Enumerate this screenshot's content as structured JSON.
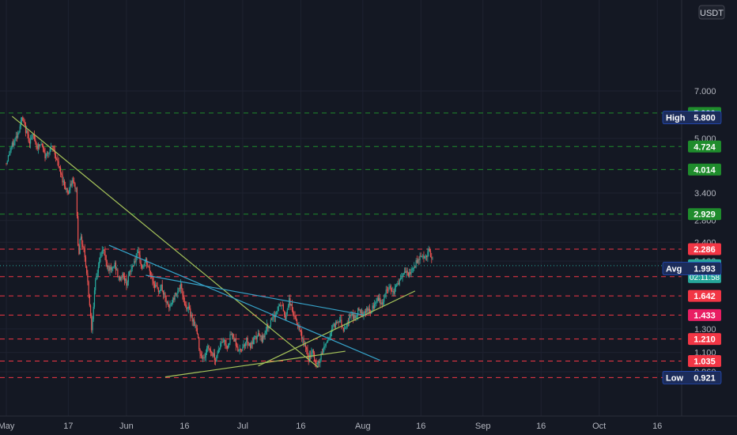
{
  "chart_data": {
    "type": "candlestick",
    "price_scale": {
      "currency": "USDT",
      "type": "log",
      "ticks": [
        "7.000",
        "5.000",
        "3.400",
        "2.800",
        "2.400",
        "2.100",
        "1.300",
        "1.100",
        "0.960"
      ]
    },
    "time_axis": {
      "ticks": [
        {
          "label": "May",
          "day": 0
        },
        {
          "label": "17",
          "day": 16
        },
        {
          "label": "Jun",
          "day": 31
        },
        {
          "label": "16",
          "day": 46
        },
        {
          "label": "Jul",
          "day": 61
        },
        {
          "label": "16",
          "day": 76
        },
        {
          "label": "Aug",
          "day": 92
        },
        {
          "label": "16",
          "day": 107
        },
        {
          "label": "Sep",
          "day": 123
        },
        {
          "label": "16",
          "day": 138
        },
        {
          "label": "Oct",
          "day": 153
        },
        {
          "label": "16",
          "day": 168
        }
      ]
    },
    "price_path": [
      [
        0,
        4.2
      ],
      [
        1,
        4.6
      ],
      [
        2,
        4.9
      ],
      [
        3,
        5.2
      ],
      [
        4,
        5.75
      ],
      [
        5,
        5.3
      ],
      [
        6,
        4.9
      ],
      [
        7,
        5.1
      ],
      [
        8,
        4.7
      ],
      [
        9,
        4.8
      ],
      [
        10,
        4.4
      ],
      [
        11,
        4.6
      ],
      [
        12,
        4.7
      ],
      [
        13,
        4.3
      ],
      [
        14,
        3.9
      ],
      [
        15,
        3.6
      ],
      [
        16,
        3.4
      ],
      [
        17,
        3.7
      ],
      [
        18,
        3.5
      ],
      [
        18.6,
        2.1
      ],
      [
        19,
        2.5
      ],
      [
        20,
        2.3
      ],
      [
        21,
        1.8
      ],
      [
        22,
        1.3
      ],
      [
        23,
        1.8
      ],
      [
        24,
        2.1
      ],
      [
        25,
        2.3
      ],
      [
        26,
        2.05
      ],
      [
        27,
        1.95
      ],
      [
        28,
        2.05
      ],
      [
        29,
        1.85
      ],
      [
        30,
        1.9
      ],
      [
        31,
        1.8
      ],
      [
        32,
        1.95
      ],
      [
        33,
        2.1
      ],
      [
        34,
        2.2
      ],
      [
        35,
        2.0
      ],
      [
        36,
        2.1
      ],
      [
        37,
        1.95
      ],
      [
        38,
        1.8
      ],
      [
        39,
        1.7
      ],
      [
        40,
        1.75
      ],
      [
        41,
        1.6
      ],
      [
        42,
        1.5
      ],
      [
        43,
        1.6
      ],
      [
        44,
        1.7
      ],
      [
        45,
        1.75
      ],
      [
        46,
        1.55
      ],
      [
        47,
        1.5
      ],
      [
        48,
        1.4
      ],
      [
        49,
        1.3
      ],
      [
        50,
        1.1
      ],
      [
        51,
        1.05
      ],
      [
        52,
        1.15
      ],
      [
        53,
        1.1
      ],
      [
        54,
        1.05
      ],
      [
        55,
        1.15
      ],
      [
        56,
        1.2
      ],
      [
        57,
        1.15
      ],
      [
        58,
        1.25
      ],
      [
        59,
        1.2
      ],
      [
        60,
        1.1
      ],
      [
        61,
        1.15
      ],
      [
        62,
        1.2
      ],
      [
        63,
        1.15
      ],
      [
        64,
        1.2
      ],
      [
        65,
        1.25
      ],
      [
        66,
        1.2
      ],
      [
        67,
        1.3
      ],
      [
        68,
        1.35
      ],
      [
        69,
        1.4
      ],
      [
        70,
        1.5
      ],
      [
        71,
        1.55
      ],
      [
        72,
        1.4
      ],
      [
        73,
        1.6
      ],
      [
        74,
        1.45
      ],
      [
        75,
        1.35
      ],
      [
        76,
        1.25
      ],
      [
        77,
        1.15
      ],
      [
        78,
        1.05
      ],
      [
        79,
        1.1
      ],
      [
        80,
        1.0
      ],
      [
        81,
        1.05
      ],
      [
        82,
        1.15
      ],
      [
        83,
        1.2
      ],
      [
        84,
        1.3
      ],
      [
        85,
        1.35
      ],
      [
        86,
        1.4
      ],
      [
        87,
        1.3
      ],
      [
        88,
        1.35
      ],
      [
        89,
        1.45
      ],
      [
        90,
        1.4
      ],
      [
        91,
        1.5
      ],
      [
        92,
        1.45
      ],
      [
        93,
        1.5
      ],
      [
        94,
        1.45
      ],
      [
        95,
        1.55
      ],
      [
        96,
        1.6
      ],
      [
        97,
        1.55
      ],
      [
        98,
        1.7
      ],
      [
        99,
        1.75
      ],
      [
        100,
        1.7
      ],
      [
        101,
        1.8
      ],
      [
        102,
        1.85
      ],
      [
        103,
        1.95
      ],
      [
        104,
        1.9
      ],
      [
        105,
        2.0
      ],
      [
        106,
        2.1
      ],
      [
        107,
        2.2
      ],
      [
        108,
        2.15
      ],
      [
        109,
        2.25
      ],
      [
        110,
        2.1
      ]
    ],
    "trendlines": [
      {
        "color": "#a7c55a",
        "from": [
          1.5,
          5.85
        ],
        "to": [
          80.5,
          0.99
        ]
      },
      {
        "color": "#a7c55a",
        "from": [
          41,
          0.925
        ],
        "to": [
          87.5,
          1.11
        ]
      },
      {
        "color": "#a7c55a",
        "from": [
          65,
          1.0
        ],
        "to": [
          105.5,
          1.7
        ]
      },
      {
        "color": "#36a3c9",
        "from": [
          26.5,
          2.35
        ],
        "to": [
          96.5,
          1.04
        ]
      },
      {
        "color": "#36a3c9",
        "from": [
          36,
          1.9
        ],
        "to": [
          92.5,
          1.433
        ]
      }
    ],
    "horizontal_levels": [
      {
        "value": 5.99,
        "label": "5.990",
        "color": "#1f8c2c",
        "line": "green"
      },
      {
        "value": 4.724,
        "label": "4.724",
        "color": "#1f8c2c",
        "line": "green"
      },
      {
        "value": 4.014,
        "label": "4.014",
        "color": "#1f8c2c",
        "line": "green"
      },
      {
        "value": 2.929,
        "label": "2.929",
        "color": "#1f8c2c",
        "line": "green"
      },
      {
        "value": 2.286,
        "label": "2.286",
        "color": "#f23645",
        "line": "red"
      },
      {
        "value": 1.882,
        "label": "1.882",
        "color": "#f23645",
        "line": "red"
      },
      {
        "value": 1.642,
        "label": "1.642",
        "color": "#f23645",
        "line": "red"
      },
      {
        "value": 1.433,
        "label": "1.433",
        "color": "#e91e63",
        "line": "red"
      },
      {
        "value": 1.21,
        "label": "1.210",
        "color": "#f23645",
        "line": "red"
      },
      {
        "value": 1.035,
        "label": "1.035",
        "color": "#f23645",
        "line": "red"
      },
      {
        "value": 0.921,
        "label": "0.921",
        "color": "#e91e63",
        "line": "red"
      }
    ],
    "current_price": {
      "value": 2.033,
      "label": "2.033",
      "countdown": "02:11:58",
      "color": "#26a69a"
    },
    "stats": [
      {
        "name": "High",
        "value": 5.8,
        "label": "5.800"
      },
      {
        "name": "Avg",
        "value": 1.993,
        "label": "1.993"
      },
      {
        "name": "Low",
        "value": 0.921,
        "label": "0.921"
      }
    ],
    "colors": {
      "up": "#26a69a",
      "down": "#ef5350",
      "background": "#141823",
      "text": "#b2b5be"
    }
  }
}
